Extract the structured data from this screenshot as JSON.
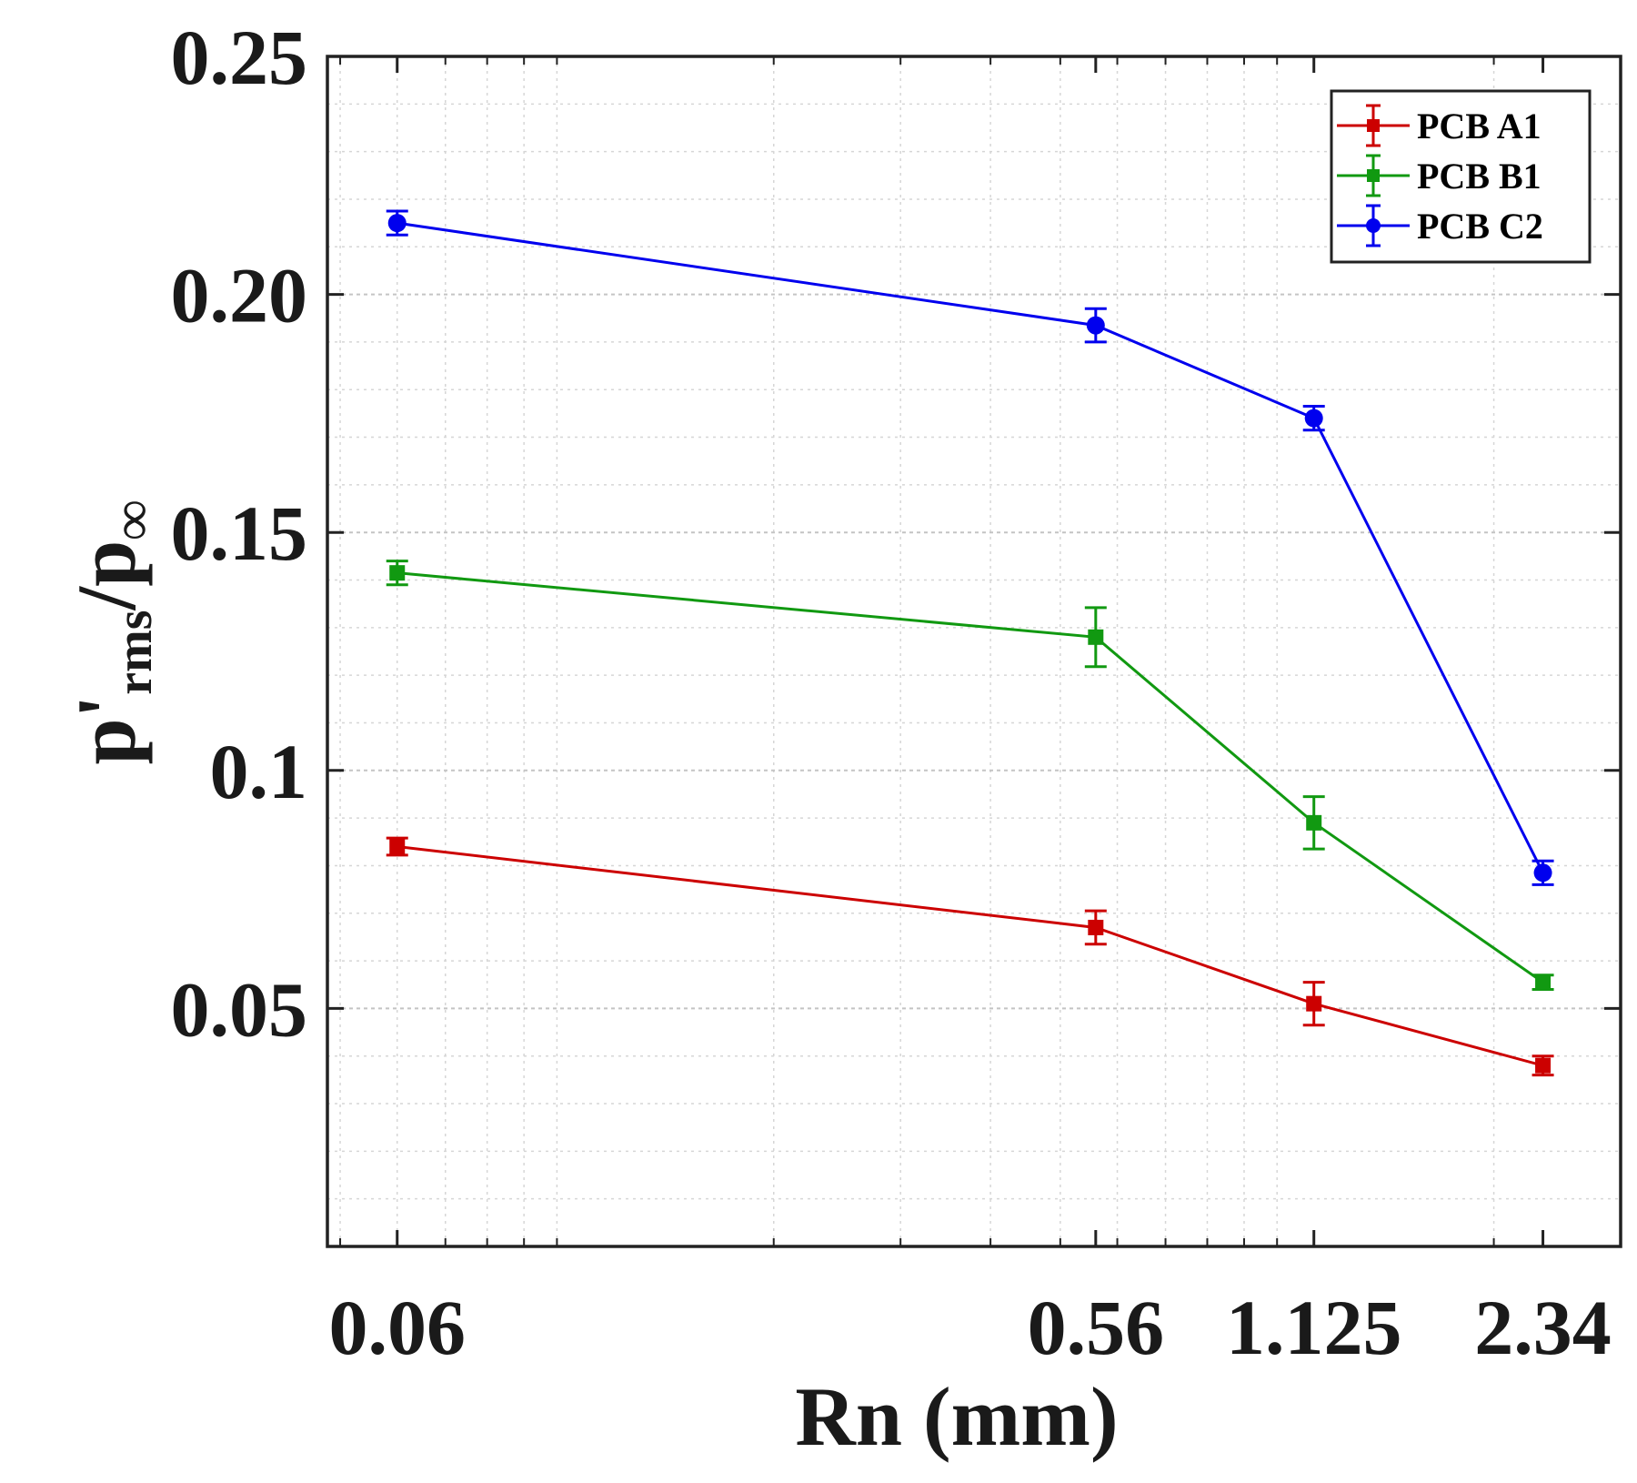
{
  "chart_data": {
    "type": "line",
    "x_scale": "log",
    "x_ticks": [
      0.06,
      0.56,
      1.125,
      2.34
    ],
    "x_tick_labels": [
      "0.06",
      "0.56",
      "1.125",
      "2.34"
    ],
    "xlim": [
      0.048,
      3.0
    ],
    "y_ticks": [
      0.05,
      0.1,
      0.15,
      0.2,
      0.25
    ],
    "y_tick_labels": [
      "0.05",
      "0.1",
      "0.15",
      "0.20",
      "0.25"
    ],
    "ylim": [
      0.0,
      0.25
    ],
    "grid": true,
    "legend_position": "top-right",
    "xlabel": "Rn (mm)",
    "ylabel": {
      "base": "p",
      "prime": "'",
      "subscript": "rms",
      "slash": "/p",
      "subscript2": "∞"
    },
    "series": [
      {
        "name": "PCB A1",
        "color": "#cc0000",
        "marker": "square",
        "x": [
          0.06,
          0.56,
          1.125,
          2.34
        ],
        "y": [
          0.084,
          0.067,
          0.051,
          0.038
        ],
        "err": [
          0.0018,
          0.0035,
          0.0045,
          0.002
        ]
      },
      {
        "name": "PCB B1",
        "color": "#119911",
        "marker": "square",
        "x": [
          0.06,
          0.56,
          1.125,
          2.34
        ],
        "y": [
          0.1415,
          0.128,
          0.089,
          0.0555
        ],
        "err": [
          0.0025,
          0.0062,
          0.0055,
          0.0015
        ]
      },
      {
        "name": "PCB C2",
        "color": "#0000ee",
        "marker": "circle",
        "x": [
          0.06,
          0.56,
          1.125,
          2.34
        ],
        "y": [
          0.215,
          0.1935,
          0.174,
          0.0785
        ],
        "err": [
          0.0025,
          0.0035,
          0.0025,
          0.0025
        ]
      }
    ]
  }
}
